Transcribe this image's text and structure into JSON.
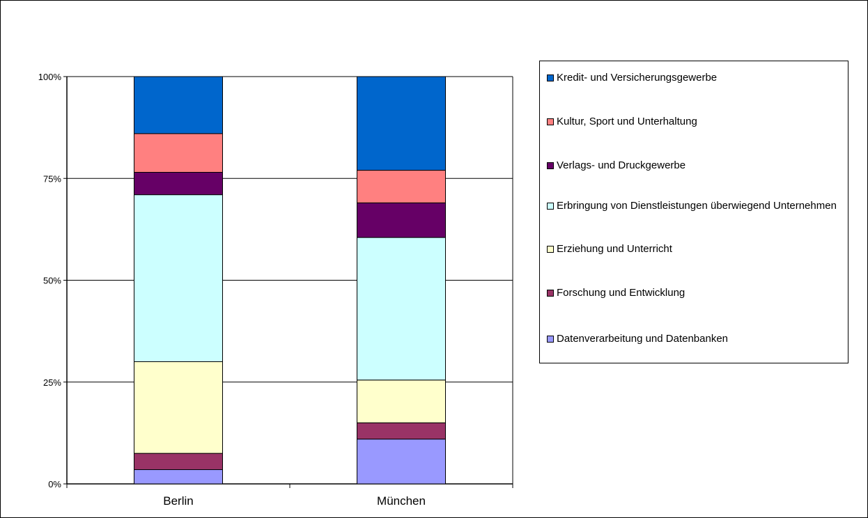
{
  "chart_data": {
    "type": "bar",
    "stacked": true,
    "normalized": true,
    "categories": [
      "Berlin",
      "München"
    ],
    "y_ticks": [
      "0%",
      "25%",
      "50%",
      "75%",
      "100%"
    ],
    "ylim": [
      0,
      100
    ],
    "grid": true,
    "legend_position": "right",
    "series": [
      {
        "name": "Datenverarbeitung und Datenbanken",
        "color": "#9999ff",
        "values": [
          3.5,
          11
        ]
      },
      {
        "name": "Forschung und Entwicklung",
        "color": "#993366",
        "values": [
          4,
          4
        ]
      },
      {
        "name": "Erziehung und Unterricht",
        "color": "#ffffcc",
        "values": [
          22.5,
          10.5
        ]
      },
      {
        "name": "Erbringung von Dienstleistungen überwiegend Unternehmen",
        "color": "#ccffff",
        "values": [
          41,
          35
        ]
      },
      {
        "name": "Verlags- und Druckgewerbe",
        "color": "#660066",
        "values": [
          5.5,
          8.5
        ]
      },
      {
        "name": "Kultur, Sport und Unterhaltung",
        "color": "#ff8080",
        "values": [
          9.5,
          8
        ]
      },
      {
        "name": "Kredit- und Versicherungsgewerbe",
        "color": "#0066cc",
        "values": [
          14,
          23
        ]
      }
    ]
  }
}
